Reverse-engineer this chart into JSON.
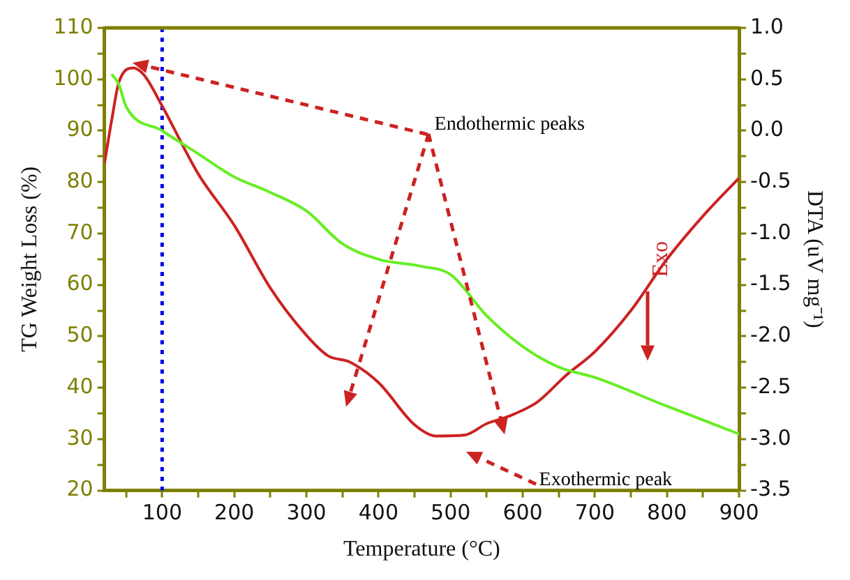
{
  "chart_data": {
    "type": "line",
    "xlabel": "Temperature (°C)",
    "ylabel": "TG Weight Loss (%)",
    "y2label": "DTA (uV mg⁻¹)",
    "xlim": [
      20,
      900
    ],
    "xticks": [
      {
        "value": 50,
        "label": null
      },
      100,
      {
        "value": 150,
        "label": null
      },
      200,
      {
        "value": 250,
        "label": null
      },
      300,
      {
        "value": 350,
        "label": null
      },
      400,
      {
        "value": 450,
        "label": null
      },
      500,
      {
        "value": 550,
        "label": null
      },
      600,
      {
        "value": 650,
        "label": null
      },
      700,
      {
        "value": 750,
        "label": null
      },
      800,
      {
        "value": 850,
        "label": null
      },
      900
    ],
    "ylim": [
      20,
      110
    ],
    "yticks": [
      20,
      {
        "value": 25,
        "label": null
      },
      30,
      {
        "value": 35,
        "label": null
      },
      40,
      {
        "value": 45,
        "label": null
      },
      50,
      {
        "value": 55,
        "label": null
      },
      60,
      {
        "value": 65,
        "label": null
      },
      70,
      {
        "value": 75,
        "label": null
      },
      80,
      {
        "value": 85,
        "label": null
      },
      90,
      {
        "value": 95,
        "label": null
      },
      100,
      {
        "value": 105,
        "label": null
      },
      110
    ],
    "y2lim": [
      -3.5,
      1.0
    ],
    "y2ticks": [
      {
        "value": -3.5,
        "label": "-3.5"
      },
      {
        "value": -3.25,
        "label": null
      },
      {
        "value": -3.0,
        "label": "-3.0"
      },
      {
        "value": -2.75,
        "label": null
      },
      {
        "value": -2.5,
        "label": "-2.5"
      },
      {
        "value": -2.25,
        "label": null
      },
      {
        "value": -2.0,
        "label": "-2.0"
      },
      {
        "value": -1.75,
        "label": null
      },
      {
        "value": -1.5,
        "label": "-1.5"
      },
      {
        "value": -1.25,
        "label": null
      },
      {
        "value": -1.0,
        "label": "-1.0"
      },
      {
        "value": -0.75,
        "label": null
      },
      {
        "value": -0.5,
        "label": "-0.5"
      },
      {
        "value": -0.25,
        "label": null
      },
      {
        "value": 0,
        "label": "0.0"
      },
      {
        "value": 0.25,
        "label": null
      },
      {
        "value": 0.5,
        "label": "0.5"
      },
      {
        "value": 0.75,
        "label": null
      },
      {
        "value": 1.0,
        "label": "1.0"
      }
    ],
    "grid": false,
    "legend": false,
    "marker": "none",
    "line_style": "solid",
    "series": [
      {
        "color": "#66ee22",
        "x": [
          30,
          40,
          50,
          100,
          150,
          200,
          250,
          300,
          350,
          400,
          460,
          500,
          550,
          600,
          650,
          700,
          800,
          900
        ],
        "values": [
          101,
          99,
          94.7,
          90,
          85.5,
          81,
          78,
          74.4,
          68,
          65,
          63.6,
          62,
          54,
          48,
          44,
          42,
          36.4,
          31
        ]
      },
      {
        "color": "#cc2222",
        "axis": "y2",
        "x": [
          20,
          30,
          40,
          60,
          75,
          100,
          150,
          200,
          250,
          300,
          330,
          360,
          400,
          450,
          480,
          520,
          550,
          580,
          620,
          660,
          700,
          750,
          800,
          850,
          900
        ],
        "values": [
          -0.32,
          0.1,
          0.47,
          0.61,
          0.54,
          0.24,
          -0.42,
          -0.92,
          -1.53,
          -1.99,
          -2.19,
          -2.25,
          -2.45,
          -2.86,
          -2.97,
          -2.96,
          -2.85,
          -2.78,
          -2.64,
          -2.38,
          -2.15,
          -1.75,
          -1.25,
          -0.83,
          -0.46
        ]
      }
    ],
    "ref_lines": [
      {
        "axis": "x",
        "value": 100,
        "color": "#0000ee",
        "line_style": "dotted"
      }
    ],
    "annotations": [
      "Endothermic peaks",
      "Exothermic peak",
      "Exo"
    ]
  }
}
